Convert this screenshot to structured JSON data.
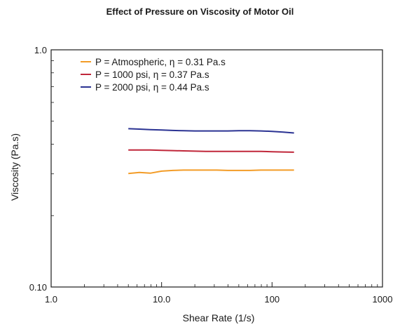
{
  "chart_data": {
    "type": "line",
    "title": "Effect of Pressure on Viscosity of Motor Oil",
    "xlabel": "Shear Rate (1/s)",
    "ylabel": "Viscosity (Pa.s)",
    "xscale": "log",
    "yscale": "log",
    "xlim": [
      1,
      1000
    ],
    "ylim": [
      0.1,
      1.0
    ],
    "xtick_labels": [
      "1.0",
      "10.0",
      "100",
      "1000"
    ],
    "xtick_values": [
      1,
      10,
      100,
      1000
    ],
    "ytick_labels": [
      "0.10",
      "1.0"
    ],
    "ytick_values": [
      0.1,
      1.0
    ],
    "grid": false,
    "legend_position": "top-left",
    "series": [
      {
        "name": "P = Atmospheric, η = 0.31 Pa.s",
        "color": "#f39c27",
        "x": [
          5.0,
          6.3,
          7.9,
          10.0,
          12.6,
          15.8,
          20.0,
          25.1,
          31.6,
          39.8,
          50.1,
          63.1,
          79.4,
          100,
          126,
          158
        ],
        "y": [
          0.301,
          0.304,
          0.302,
          0.308,
          0.31,
          0.311,
          0.311,
          0.311,
          0.311,
          0.31,
          0.31,
          0.31,
          0.311,
          0.311,
          0.311,
          0.311
        ]
      },
      {
        "name": "P = 1000 psi, η = 0.37 Pa.s",
        "color": "#c0273a",
        "x": [
          5.0,
          6.3,
          7.9,
          10.0,
          12.6,
          15.8,
          20.0,
          25.1,
          31.6,
          39.8,
          50.1,
          63.1,
          79.4,
          100,
          126,
          158
        ],
        "y": [
          0.378,
          0.378,
          0.378,
          0.377,
          0.376,
          0.375,
          0.374,
          0.373,
          0.373,
          0.373,
          0.373,
          0.373,
          0.373,
          0.372,
          0.371,
          0.37
        ]
      },
      {
        "name": "P = 2000 psi, η = 0.44 Pa.s",
        "color": "#2b3393",
        "x": [
          5.0,
          6.3,
          7.9,
          10.0,
          12.6,
          15.8,
          20.0,
          25.1,
          31.6,
          39.8,
          50.1,
          63.1,
          79.4,
          100,
          126,
          158
        ],
        "y": [
          0.465,
          0.463,
          0.461,
          0.459,
          0.457,
          0.456,
          0.455,
          0.455,
          0.455,
          0.455,
          0.456,
          0.456,
          0.455,
          0.453,
          0.45,
          0.446
        ]
      }
    ]
  }
}
